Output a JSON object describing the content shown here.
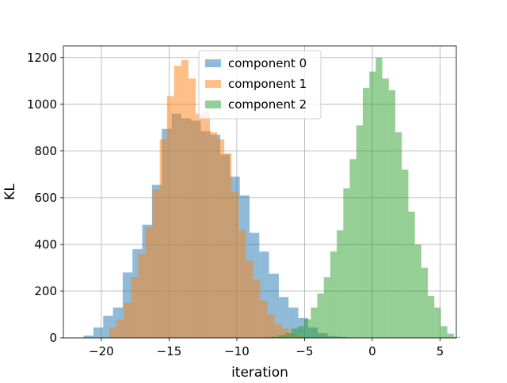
{
  "chart_data": {
    "type": "histogram",
    "title": "",
    "xlabel": "iteration",
    "ylabel": "KL",
    "xlim": [
      -22.8,
      6.2
    ],
    "ylim": [
      0,
      1250
    ],
    "xticks": [
      -20,
      -15,
      -10,
      -5,
      0,
      5
    ],
    "yticks": [
      0,
      200,
      400,
      600,
      800,
      1000,
      1200
    ],
    "grid": true,
    "legend_position": "upper center",
    "series": [
      {
        "name": "component 0",
        "color": "#1f77b4",
        "alpha": 0.5,
        "bin_start": -21.3,
        "bin_width": 0.72,
        "counts": [
          10,
          45,
          95,
          130,
          280,
          380,
          485,
          655,
          895,
          960,
          940,
          930,
          885,
          870,
          785,
          690,
          610,
          450,
          370,
          275,
          175,
          130,
          85,
          45,
          20,
          8,
          4
        ]
      },
      {
        "name": "component 1",
        "color": "#ff7f0e",
        "alpha": 0.5,
        "bin_start": -19.4,
        "bin_width": 0.53,
        "counts": [
          45,
          80,
          150,
          260,
          360,
          475,
          635,
          850,
          1035,
          1165,
          1190,
          1110,
          960,
          970,
          880,
          850,
          790,
          625,
          460,
          330,
          250,
          160,
          100,
          60,
          40,
          20,
          8
        ]
      },
      {
        "name": "component 2",
        "color": "#2ca02c",
        "alpha": 0.5,
        "bin_start": -7.9,
        "bin_width": 0.48,
        "counts": [
          3,
          5,
          12,
          20,
          40,
          50,
          80,
          130,
          190,
          260,
          370,
          460,
          640,
          765,
          910,
          1070,
          1140,
          1200,
          1110,
          1060,
          880,
          720,
          540,
          400,
          300,
          180,
          130,
          50,
          18,
          4
        ]
      }
    ]
  }
}
